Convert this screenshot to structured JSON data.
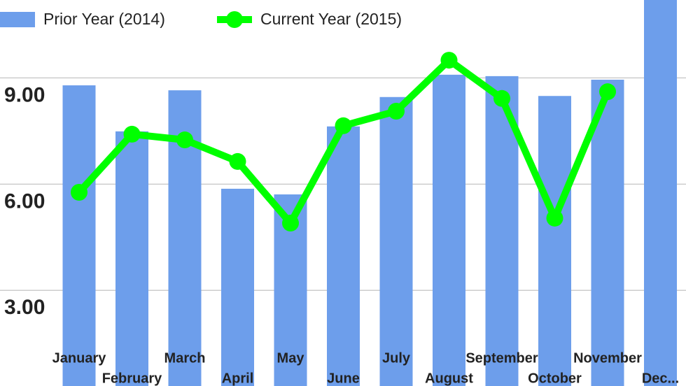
{
  "chart_data": {
    "type": "bar_line",
    "categories": [
      "January",
      "February",
      "March",
      "April",
      "May",
      "June",
      "July",
      "August",
      "September",
      "October",
      "November",
      "Dec..."
    ],
    "series": [
      {
        "name": "Prior Year (2014)",
        "type": "bar",
        "color": "#6d9eeb",
        "values": [
          8.79,
          7.49,
          8.65,
          5.87,
          5.71,
          7.63,
          8.46,
          9.09,
          9.05,
          8.49,
          8.95,
          11.5
        ]
      },
      {
        "name": "Current Year (2015)",
        "type": "line",
        "color": "#00ff00",
        "values": [
          5.77,
          7.41,
          7.25,
          6.64,
          4.9,
          7.65,
          8.06,
          9.5,
          8.42,
          5.04,
          8.61,
          null
        ]
      }
    ],
    "ylim": [
      0.3,
      11.2
    ],
    "yticks": [
      {
        "value": 3,
        "label": "3.00"
      },
      {
        "value": 6,
        "label": "6.00"
      },
      {
        "value": 9,
        "label": "9.00"
      }
    ],
    "grid": true
  }
}
